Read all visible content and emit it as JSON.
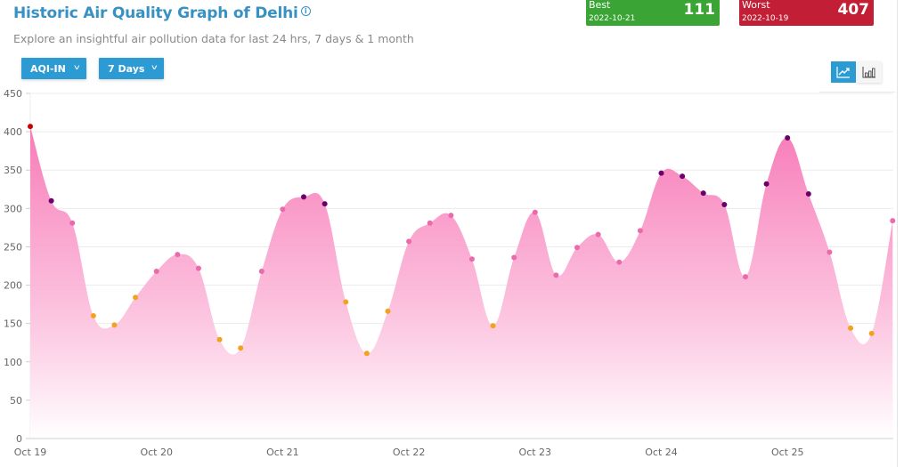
{
  "header": {
    "title": "Historic Air Quality Graph of Delhi",
    "info_icon": "info-circle-icon",
    "subtitle": "Explore an insightful air pollution data for last 24 hrs, 7 days & 1 month"
  },
  "filters": {
    "metric": {
      "label": "AQI-IN",
      "icon": "chevron-down-icon"
    },
    "range": {
      "label": "7 Days",
      "icon": "chevron-down-icon"
    }
  },
  "stats": {
    "best": {
      "label": "Best",
      "date": "2022-10-21",
      "value": "111",
      "color": "#3aa535"
    },
    "worst": {
      "label": "Worst",
      "date": "2022-10-19",
      "value": "407",
      "color": "#c21f36"
    }
  },
  "chart_toggle": {
    "line": {
      "icon": "line-chart-icon",
      "active": true
    },
    "bar": {
      "icon": "bar-chart-icon",
      "active": false
    }
  },
  "colors": {
    "accent": "#2d9bd3",
    "title": "#3891c3",
    "fill_top": "#f77bb8",
    "fill_bottom": "#ffffff",
    "moderate": "#f2a21c",
    "poor": "#ea6aac",
    "very_poor": "#6c006a",
    "severe": "#cc0000"
  },
  "chart_data": {
    "type": "area",
    "title": "Historic Air Quality Graph of Delhi",
    "xlabel": "",
    "ylabel": "AQI-IN",
    "ylim": [
      0,
      450
    ],
    "yticks": [
      0,
      50,
      100,
      150,
      200,
      250,
      300,
      350,
      400,
      450
    ],
    "grid": true,
    "legend": "none",
    "categories": [
      "Oct 19",
      "Oct 20",
      "Oct 21",
      "Oct 22",
      "Oct 23",
      "Oct 24",
      "Oct 25"
    ],
    "interval_hours": 4,
    "series": [
      {
        "name": "AQI-IN",
        "values": [
          407,
          310,
          281,
          160,
          148,
          184,
          218,
          240,
          222,
          129,
          118,
          218,
          299,
          315,
          306,
          178,
          111,
          166,
          257,
          281,
          291,
          234,
          147,
          236,
          295,
          213,
          249,
          266,
          230,
          271,
          346,
          342,
          320,
          305,
          211,
          332,
          392,
          319,
          243,
          144,
          137,
          284
        ]
      }
    ]
  }
}
